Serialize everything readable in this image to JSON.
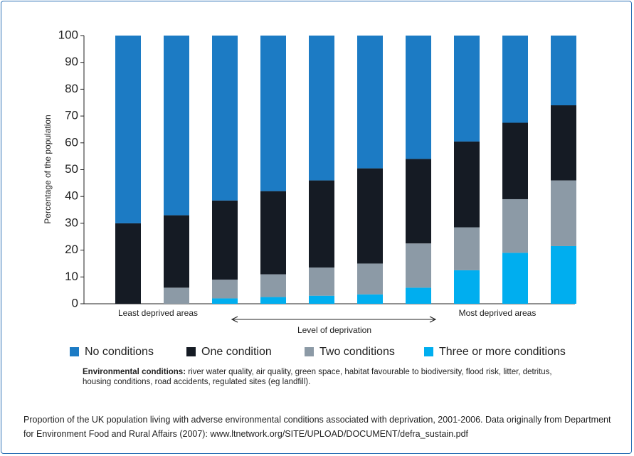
{
  "chart_data": {
    "type": "stacked_bar",
    "y_label": "Percentage of the population",
    "x_label": "Level of deprivation",
    "annotations": [
      "Least deprived areas",
      "Most deprived areas"
    ],
    "categories": [
      null,
      null,
      null,
      null,
      null,
      null,
      null,
      null,
      null,
      null
    ],
    "series": [
      {
        "name": "No conditions",
        "color": "#1c7bc4",
        "values": [
          70,
          67,
          61.5,
          58,
          54,
          49.5,
          46,
          39.5,
          32.5,
          26
        ]
      },
      {
        "name": "One condition",
        "color": "#151b24",
        "values": [
          30,
          27,
          29.5,
          31,
          32.5,
          35.5,
          31.5,
          32,
          28.5,
          28
        ]
      },
      {
        "name": "Two conditions",
        "color": "#8c9aa6",
        "values": [
          0,
          6,
          7,
          8.5,
          10.5,
          11.5,
          16.5,
          16,
          20,
          24.5
        ]
      },
      {
        "name": "Three or more conditions",
        "color": "#00aeef",
        "values": [
          0,
          0,
          2,
          2.5,
          3,
          3.5,
          6,
          12.5,
          19,
          21.5
        ]
      }
    ],
    "ylim": [
      0,
      100
    ],
    "yticks": [
      0,
      10,
      20,
      30,
      40,
      50,
      60,
      70,
      80,
      90,
      100
    ],
    "grid": false,
    "note_label": "Environmental conditions:",
    "note_text": "river water quality, air quality, green space, habitat favourable to biodiversity, flood risk, litter, detritus, housing conditions, road accidents, regulated sites (eg landfill)."
  },
  "caption": "Proportion of the UK population living with adverse environmental conditions associated with deprivation, 2001-2006. Data originally from Department for Environment Food and Rural Affairs (2007): www.ltnetwork.org/SITE/UPLOAD/DOCUMENT/defra_sustain.pdf"
}
